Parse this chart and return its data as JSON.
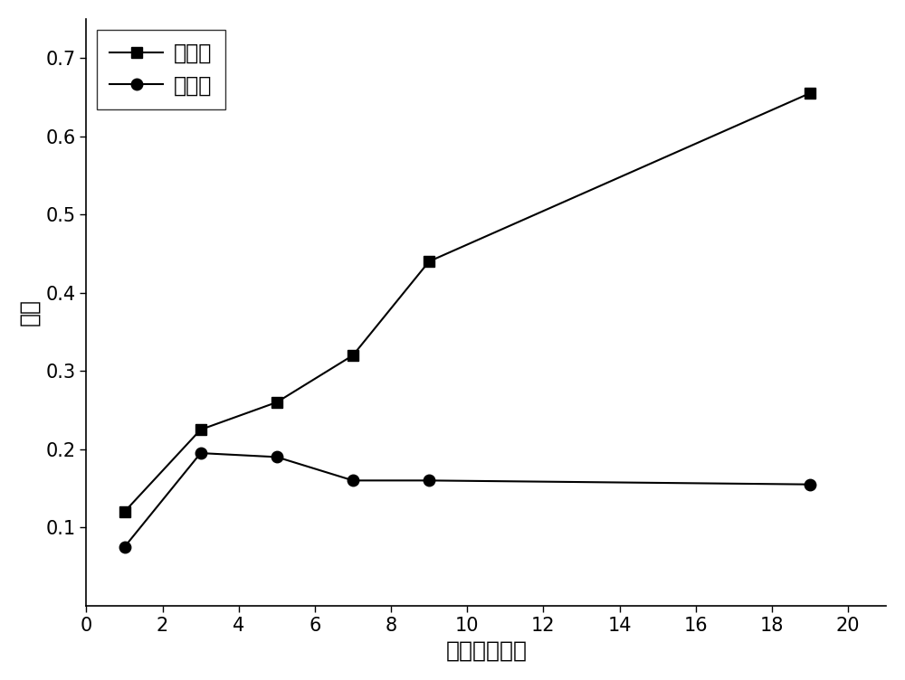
{
  "series1_label": "诱变菌",
  "series2_label": "对照菌",
  "series1_x": [
    1,
    3,
    5,
    7,
    9,
    19
  ],
  "series1_y": [
    0.12,
    0.225,
    0.26,
    0.32,
    0.44,
    0.655
  ],
  "series2_x": [
    1,
    3,
    5,
    7,
    9,
    19
  ],
  "series2_y": [
    0.075,
    0.195,
    0.19,
    0.16,
    0.16,
    0.155
  ],
  "xlabel": "时间（小时）",
  "ylabel": "对照",
  "xlim": [
    0,
    21
  ],
  "ylim": [
    0,
    0.75
  ],
  "xticks": [
    0,
    2,
    4,
    6,
    8,
    10,
    12,
    14,
    16,
    18,
    20
  ],
  "yticks": [
    0.1,
    0.2,
    0.3,
    0.4,
    0.5,
    0.6,
    0.7
  ],
  "line_color": "#000000",
  "marker1": "s",
  "marker2": "o",
  "marker_size": 9,
  "line_width": 1.5,
  "background_color": "#ffffff",
  "legend_fontsize": 17,
  "axis_label_fontsize": 18,
  "tick_fontsize": 15
}
